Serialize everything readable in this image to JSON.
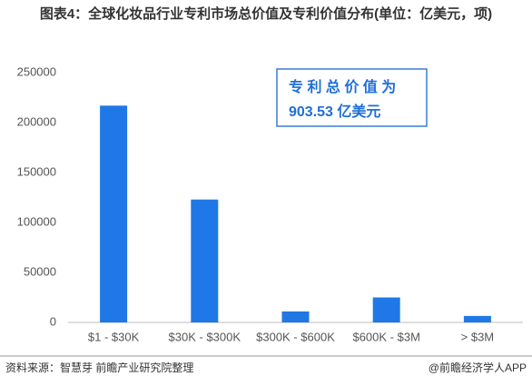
{
  "chart_data": {
    "type": "bar",
    "title": "图表4：全球化妆品行业专利市场总价值及专利价值分布(单位：亿美元，项)",
    "annotation": [
      "专 利 总 价 值 为",
      "903.53 亿美元"
    ],
    "categories": [
      "$1 - $30K",
      "$30K - $300K",
      "$300K - $600K",
      "$600K - $3M",
      "> $3M"
    ],
    "values": [
      217000,
      123000,
      11000,
      25000,
      6500
    ],
    "color": "#1f78e6",
    "ylim": [
      0,
      250000
    ],
    "yticks": [
      0,
      50000,
      100000,
      150000,
      200000,
      250000
    ],
    "grid": false,
    "source": "资料来源：智慧芽 前瞻产业研究院整理",
    "credit": "@前瞻经济学人APP"
  }
}
